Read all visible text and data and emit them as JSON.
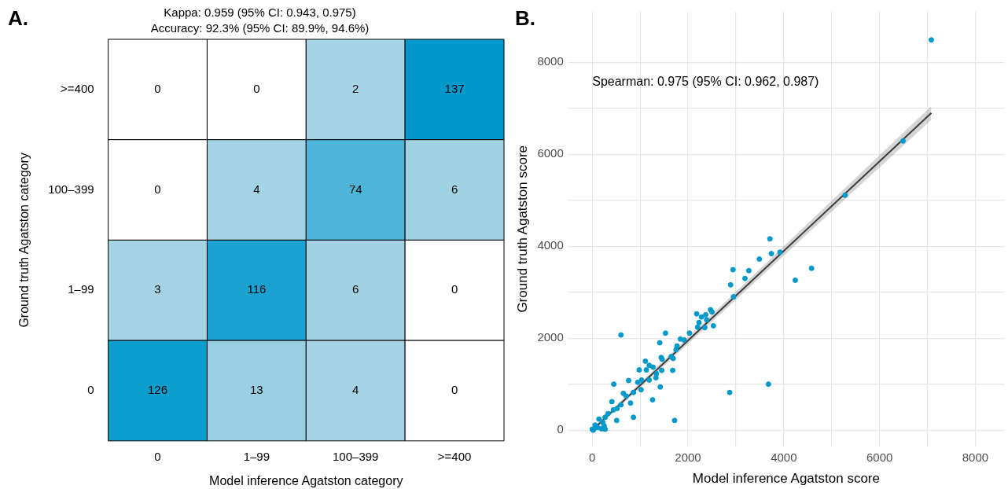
{
  "chart_data": [
    {
      "type": "heatmap",
      "title": "Kappa: 0.959 (95% CI: 0.943, 0.975)",
      "subtitle": "Accuracy: 92.3% (95% CI: 89.9%, 94.6%)",
      "xlabel": "Model inference Agatston category",
      "ylabel": "Ground truth Agatston category",
      "categories": [
        "0",
        "1–99",
        "100–399",
        ">=400"
      ],
      "y_categories": [
        ">=400",
        "100–399",
        "1–99",
        "0"
      ],
      "cells": [
        [
          0,
          0,
          2,
          137
        ],
        [
          0,
          4,
          74,
          6
        ],
        [
          3,
          116,
          6,
          0
        ],
        [
          126,
          13,
          4,
          0
        ]
      ],
      "annotations": [
        "A."
      ],
      "legend": false,
      "grid": false,
      "data_labels": true
    },
    {
      "type": "scatter",
      "xlabel": "Model inference Agatston score",
      "ylabel": "Ground truth Agatston score",
      "xlim": [
        -500,
        8600
      ],
      "ylim": [
        -350,
        9100
      ],
      "xticks": [
        0,
        {
          "value": 1000,
          "label": null
        },
        2000,
        {
          "value": 3000,
          "label": null
        },
        4000,
        {
          "value": 5000,
          "label": null
        },
        6000,
        {
          "value": 7000,
          "label": null
        },
        8000
      ],
      "yticks": [
        0,
        {
          "value": 1000,
          "label": null
        },
        2000,
        {
          "value": 3000,
          "label": null
        },
        4000,
        {
          "value": 5000,
          "label": null
        },
        6000,
        {
          "value": 7000,
          "label": null
        },
        8000
      ],
      "grid": true,
      "legend": false,
      "marker": "circle",
      "annotations": [
        "B.",
        "Spearman: 0.975 (95% CI: 0.962, 0.987)"
      ],
      "series": [
        {
          "type": "scatter",
          "color": "#0099cc",
          "x": [
            7080,
            6490,
            5280,
            3710,
            3740,
            3920,
            3490,
            3270,
            3190,
            2940,
            2890,
            2950,
            4580,
            4240,
            2180,
            2280,
            2370,
            2470,
            2500,
            2230,
            2390,
            2530,
            600,
            1530,
            1410,
            1840,
            1920,
            2030,
            2350,
            2200,
            1750,
            1770,
            1650,
            1690,
            1440,
            1460,
            1450,
            1680,
            1110,
            1190,
            980,
            1130,
            1270,
            1340,
            1330,
            1190,
            1030,
            950,
            760,
            450,
            1420,
            1020,
            860,
            650,
            710,
            1260,
            800,
            410,
            600,
            520,
            440,
            330,
            860,
            510,
            1720,
            2870,
            3680,
            270,
            140,
            220,
            60,
            0,
            190,
            270,
            250,
            110,
            20,
            40
          ],
          "values": [
            8490,
            6290,
            5110,
            4160,
            3840,
            3870,
            3720,
            3470,
            3300,
            3490,
            3160,
            2900,
            3520,
            3260,
            2530,
            2460,
            2510,
            2620,
            2570,
            2340,
            2400,
            2270,
            2070,
            2110,
            1900,
            1980,
            1960,
            2110,
            2230,
            2240,
            1750,
            1830,
            1600,
            1560,
            1580,
            1540,
            1300,
            1300,
            1500,
            1410,
            1310,
            1310,
            1370,
            1230,
            1140,
            1090,
            1090,
            1040,
            1080,
            1000,
            940,
            880,
            820,
            800,
            740,
            660,
            590,
            620,
            550,
            470,
            440,
            360,
            280,
            210,
            210,
            820,
            1000,
            280,
            240,
            170,
            110,
            20,
            30,
            20,
            90,
            60,
            0,
            30
          ]
        },
        {
          "type": "line",
          "marker": "none",
          "color": "#000000",
          "x": [
            0,
            7080
          ],
          "values": [
            0,
            6900
          ],
          "lower": [
            -40,
            6750
          ],
          "upper": [
            40,
            7050
          ]
        }
      ]
    }
  ]
}
